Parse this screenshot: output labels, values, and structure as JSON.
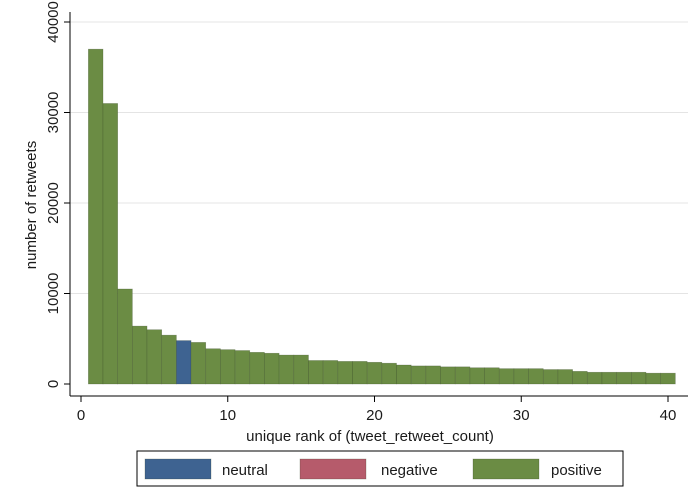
{
  "chart_data": {
    "type": "bar",
    "xlabel": "unique rank of (tweet_retweet_count)",
    "ylabel": "number of retweets",
    "xlim": [
      -1,
      41
    ],
    "ylim": [
      0,
      40000
    ],
    "x_ticks": [
      0,
      10,
      20,
      30,
      40
    ],
    "y_ticks": [
      0,
      10000,
      20000,
      30000,
      40000
    ],
    "y_tick_labels": [
      "0",
      "10000",
      "20000",
      "30000",
      "40000"
    ],
    "grid": true,
    "legend_position": "bottom",
    "colors": {
      "neutral": "#3e6391",
      "negative": "#b65b6b",
      "positive": "#6b8c44"
    },
    "legend": [
      {
        "key": "neutral",
        "label": "neutral"
      },
      {
        "key": "negative",
        "label": "negative"
      },
      {
        "key": "positive",
        "label": "positive"
      }
    ],
    "bars": [
      {
        "x": 1,
        "value": 37000,
        "sentiment": "positive"
      },
      {
        "x": 2,
        "value": 31000,
        "sentiment": "positive"
      },
      {
        "x": 3,
        "value": 10500,
        "sentiment": "positive"
      },
      {
        "x": 4,
        "value": 6400,
        "sentiment": "positive"
      },
      {
        "x": 5,
        "value": 6000,
        "sentiment": "positive"
      },
      {
        "x": 6,
        "value": 5400,
        "sentiment": "positive"
      },
      {
        "x": 7,
        "value": 4800,
        "sentiment": "neutral"
      },
      {
        "x": 8,
        "value": 4600,
        "sentiment": "positive"
      },
      {
        "x": 9,
        "value": 3900,
        "sentiment": "positive"
      },
      {
        "x": 10,
        "value": 3800,
        "sentiment": "positive"
      },
      {
        "x": 11,
        "value": 3700,
        "sentiment": "positive"
      },
      {
        "x": 12,
        "value": 3500,
        "sentiment": "positive"
      },
      {
        "x": 13,
        "value": 3400,
        "sentiment": "positive"
      },
      {
        "x": 14,
        "value": 3200,
        "sentiment": "positive"
      },
      {
        "x": 15,
        "value": 3200,
        "sentiment": "positive"
      },
      {
        "x": 16,
        "value": 2600,
        "sentiment": "positive"
      },
      {
        "x": 17,
        "value": 2600,
        "sentiment": "positive"
      },
      {
        "x": 18,
        "value": 2500,
        "sentiment": "positive"
      },
      {
        "x": 19,
        "value": 2500,
        "sentiment": "positive"
      },
      {
        "x": 20,
        "value": 2400,
        "sentiment": "positive"
      },
      {
        "x": 21,
        "value": 2300,
        "sentiment": "positive"
      },
      {
        "x": 22,
        "value": 2100,
        "sentiment": "positive"
      },
      {
        "x": 23,
        "value": 2000,
        "sentiment": "positive"
      },
      {
        "x": 24,
        "value": 2000,
        "sentiment": "positive"
      },
      {
        "x": 25,
        "value": 1900,
        "sentiment": "positive"
      },
      {
        "x": 26,
        "value": 1900,
        "sentiment": "positive"
      },
      {
        "x": 27,
        "value": 1800,
        "sentiment": "positive"
      },
      {
        "x": 28,
        "value": 1800,
        "sentiment": "positive"
      },
      {
        "x": 29,
        "value": 1700,
        "sentiment": "positive"
      },
      {
        "x": 30,
        "value": 1700,
        "sentiment": "positive"
      },
      {
        "x": 31,
        "value": 1700,
        "sentiment": "positive"
      },
      {
        "x": 32,
        "value": 1600,
        "sentiment": "positive"
      },
      {
        "x": 33,
        "value": 1600,
        "sentiment": "positive"
      },
      {
        "x": 34,
        "value": 1400,
        "sentiment": "positive"
      },
      {
        "x": 35,
        "value": 1300,
        "sentiment": "positive"
      },
      {
        "x": 36,
        "value": 1300,
        "sentiment": "positive"
      },
      {
        "x": 37,
        "value": 1300,
        "sentiment": "positive"
      },
      {
        "x": 38,
        "value": 1300,
        "sentiment": "positive"
      },
      {
        "x": 39,
        "value": 1200,
        "sentiment": "positive"
      },
      {
        "x": 40,
        "value": 1200,
        "sentiment": "positive"
      }
    ]
  }
}
